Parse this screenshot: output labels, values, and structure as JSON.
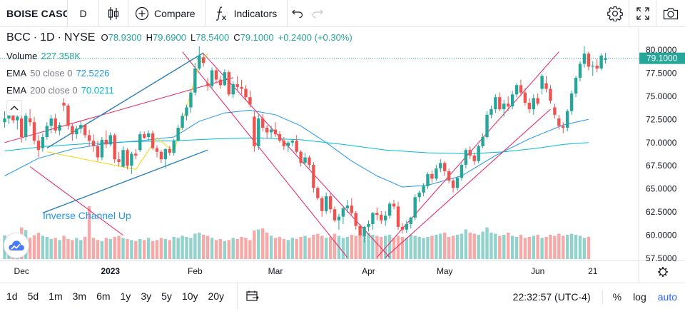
{
  "toolbar": {
    "symbol": "BOISE CASC",
    "interval": "D",
    "compare_label": "Compare",
    "indicators_label": "Indicators"
  },
  "legend": {
    "symbol": "BCC",
    "interval": "1D",
    "exchange": "NYSE",
    "open_label": "O",
    "open": "78.9300",
    "high_label": "H",
    "high": "79.6900",
    "low_label": "L",
    "low": "78.5400",
    "close_label": "C",
    "close": "79.1000",
    "change": "+0.2400 (+0.30%)",
    "volume_label": "Volume",
    "volume_value": "227.358K",
    "ema50_label": "EMA",
    "ema50_param": "50 close 0",
    "ema50_value": "72.5226",
    "ema200_label": "EMA",
    "ema200_param": "200 close 0",
    "ema200_value": "70.0211"
  },
  "colors": {
    "up": "#26a69a",
    "down": "#ef5350",
    "ema50": "#2196f3",
    "ema200": "#00bcd4",
    "channel": "#e91e63",
    "trend_blue": "#1f7ab8",
    "pattern_yellow": "#f5d60c",
    "annotation": "#2196f3",
    "accent": "#2962ff"
  },
  "bottom": {
    "ranges": [
      "1d",
      "5d",
      "1m",
      "3m",
      "6m",
      "1y",
      "3y",
      "5y",
      "10y",
      "20y"
    ],
    "clock": "22:32:57 (UTC-4)",
    "pct": "%",
    "log": "log",
    "auto": "auto"
  },
  "icons": {
    "chart_type": "candles-icon",
    "compare": "plus-circle-icon",
    "indicators": "fx-icon",
    "undo": "undo-icon",
    "redo": "redo-icon",
    "settings": "gear-icon",
    "fullscreen": "fullscreen-icon",
    "snapshot": "camera-icon",
    "date_range": "calendar-range-icon",
    "time_axis_settings": "gear-icon"
  },
  "chart_data": {
    "type": "candlestick",
    "ylim": [
      57.5,
      81.0
    ],
    "y_ticks": [
      "80.0000",
      "77.5000",
      "75.0000",
      "72.5000",
      "70.0000",
      "67.5000",
      "65.0000",
      "62.5000",
      "60.0000",
      "57.5000"
    ],
    "y_tick_values": [
      80,
      77.5,
      75,
      72.5,
      70,
      67.5,
      65,
      62.5,
      60,
      57.5
    ],
    "x_ticks": [
      {
        "label": "Dec",
        "bar": 4,
        "bold": false
      },
      {
        "label": "2023",
        "bar": 25,
        "bold": true
      },
      {
        "label": "Feb",
        "bar": 45,
        "bold": false
      },
      {
        "label": "Mar",
        "bar": 64,
        "bold": false
      },
      {
        "label": "Apr",
        "bar": 86,
        "bold": false
      },
      {
        "label": "May",
        "bar": 104,
        "bold": false
      },
      {
        "label": "Jun",
        "bar": 126,
        "bold": false
      },
      {
        "label": "21",
        "bar": 139,
        "bold": false
      }
    ],
    "last_price": 79.1,
    "last_price_label": "79.1000",
    "annotation": "Inverse Channel Up",
    "candles": [
      [
        72.2,
        73.4,
        71.6,
        72.6
      ],
      [
        72.6,
        73.6,
        72.0,
        73.2
      ],
      [
        73.2,
        73.8,
        72.1,
        72.4
      ],
      [
        72.4,
        73.0,
        71.4,
        72.8
      ],
      [
        72.6,
        72.9,
        70.0,
        70.6
      ],
      [
        70.6,
        73.2,
        70.2,
        72.9
      ],
      [
        72.6,
        73.6,
        71.8,
        72.2
      ],
      [
        72.2,
        72.8,
        69.8,
        70.2
      ],
      [
        70.2,
        70.8,
        68.4,
        69.2
      ],
      [
        69.4,
        71.0,
        69.0,
        70.6
      ],
      [
        70.6,
        72.2,
        70.3,
        71.8
      ],
      [
        71.8,
        73.0,
        71.0,
        72.6
      ],
      [
        72.6,
        73.1,
        71.0,
        71.3
      ],
      [
        71.3,
        72.2,
        70.8,
        71.9
      ],
      [
        74.3,
        74.8,
        73.4,
        74.0
      ],
      [
        74.0,
        74.2,
        71.4,
        71.8
      ],
      [
        71.8,
        72.1,
        70.2,
        70.9
      ],
      [
        70.9,
        71.8,
        70.4,
        71.5
      ],
      [
        71.5,
        72.3,
        71.0,
        71.9
      ],
      [
        71.9,
        72.0,
        70.5,
        70.8
      ],
      [
        70.8,
        71.4,
        69.6,
        70.2
      ],
      [
        70.2,
        70.9,
        69.0,
        69.6
      ],
      [
        69.6,
        70.2,
        68.0,
        68.4
      ],
      [
        68.4,
        70.6,
        68.1,
        70.3
      ],
      [
        70.3,
        71.3,
        69.4,
        69.8
      ],
      [
        69.8,
        71.1,
        69.6,
        70.8
      ],
      [
        70.8,
        71.0,
        67.8,
        68.2
      ],
      [
        68.2,
        69.0,
        67.4,
        67.9
      ],
      [
        67.4,
        69.6,
        67.3,
        69.2
      ],
      [
        69.2,
        69.4,
        67.1,
        67.5
      ],
      [
        67.5,
        69.0,
        66.6,
        68.8
      ],
      [
        68.8,
        69.3,
        68.2,
        68.6
      ],
      [
        69.2,
        71.2,
        69.0,
        70.9
      ],
      [
        70.9,
        71.2,
        70.4,
        70.5
      ],
      [
        70.6,
        71.3,
        70.2,
        71.0
      ],
      [
        71.0,
        71.3,
        69.2,
        69.4
      ],
      [
        69.4,
        69.7,
        68.4,
        69.0
      ],
      [
        69.0,
        69.2,
        67.8,
        68.2
      ],
      [
        68.2,
        69.4,
        67.2,
        69.3
      ],
      [
        69.3,
        69.6,
        68.6,
        68.9
      ],
      [
        68.9,
        70.4,
        68.6,
        70.2
      ],
      [
        70.2,
        71.9,
        70.1,
        71.6
      ],
      [
        71.6,
        73.2,
        71.4,
        72.9
      ],
      [
        72.9,
        74.1,
        72.4,
        73.8
      ],
      [
        73.8,
        75.6,
        73.2,
        75.4
      ],
      [
        75.4,
        78.6,
        75.1,
        78.0
      ],
      [
        78.0,
        80.4,
        77.8,
        79.4
      ],
      [
        79.2,
        79.6,
        78.2,
        78.6
      ],
      [
        76.4,
        77.0,
        75.6,
        76.1
      ],
      [
        76.1,
        78.1,
        75.8,
        77.8
      ],
      [
        77.8,
        78.0,
        76.4,
        76.8
      ],
      [
        76.8,
        77.2,
        75.8,
        76.2
      ],
      [
        76.2,
        77.9,
        76.1,
        77.6
      ],
      [
        77.6,
        77.8,
        75.0,
        75.2
      ],
      [
        75.2,
        76.6,
        74.8,
        76.3
      ],
      [
        76.3,
        77.2,
        75.6,
        76.0
      ],
      [
        76.0,
        76.8,
        75.2,
        75.8
      ],
      [
        75.8,
        76.2,
        74.6,
        74.9
      ],
      [
        74.9,
        75.6,
        73.8,
        74.1
      ],
      [
        72.8,
        73.4,
        69.0,
        69.6
      ],
      [
        69.6,
        73.0,
        69.2,
        72.6
      ],
      [
        72.6,
        73.1,
        71.2,
        71.6
      ],
      [
        71.6,
        71.9,
        70.4,
        71.1
      ],
      [
        71.1,
        71.8,
        70.5,
        71.4
      ],
      [
        71.4,
        72.2,
        70.6,
        70.9
      ],
      [
        70.9,
        71.2,
        70.0,
        70.2
      ],
      [
        70.2,
        70.6,
        69.2,
        69.6
      ],
      [
        69.6,
        70.2,
        69.0,
        70.0
      ],
      [
        70.0,
        70.4,
        69.6,
        70.2
      ],
      [
        70.2,
        70.8,
        68.8,
        69.0
      ],
      [
        69.0,
        69.2,
        67.4,
        67.8
      ],
      [
        67.8,
        68.9,
        67.6,
        68.4
      ],
      [
        68.4,
        68.6,
        67.2,
        67.6
      ],
      [
        67.6,
        67.9,
        64.6,
        65.1
      ],
      [
        65.1,
        65.3,
        63.8,
        64.0
      ],
      [
        64.0,
        64.2,
        62.0,
        62.6
      ],
      [
        62.6,
        64.6,
        62.3,
        64.2
      ],
      [
        64.2,
        64.6,
        62.4,
        62.8
      ],
      [
        62.8,
        63.1,
        61.4,
        61.6
      ],
      [
        61.6,
        62.3,
        60.6,
        62.0
      ],
      [
        62.0,
        63.2,
        61.2,
        62.9
      ],
      [
        62.9,
        63.8,
        62.4,
        63.2
      ],
      [
        63.2,
        64.0,
        62.2,
        62.4
      ],
      [
        62.4,
        62.6,
        60.6,
        61.0
      ],
      [
        61.0,
        61.2,
        59.8,
        60.0
      ],
      [
        59.9,
        61.0,
        59.2,
        60.9
      ],
      [
        60.9,
        61.6,
        60.4,
        61.2
      ],
      [
        61.2,
        62.5,
        60.6,
        62.4
      ],
      [
        62.4,
        63.0,
        61.6,
        62.2
      ],
      [
        62.2,
        62.6,
        61.2,
        61.6
      ],
      [
        61.6,
        62.6,
        61.0,
        62.1
      ],
      [
        62.1,
        63.6,
        61.8,
        63.4
      ],
      [
        63.4,
        63.8,
        62.8,
        63.1
      ],
      [
        63.1,
        63.6,
        60.6,
        60.9
      ],
      [
        60.9,
        61.3,
        60.2,
        60.6
      ],
      [
        60.6,
        61.6,
        60.2,
        61.2
      ],
      [
        61.2,
        62.0,
        60.7,
        61.9
      ],
      [
        61.9,
        64.4,
        61.6,
        64.1
      ],
      [
        64.1,
        64.8,
        63.6,
        64.6
      ],
      [
        64.6,
        65.6,
        64.2,
        65.3
      ],
      [
        65.3,
        66.8,
        65.0,
        66.6
      ],
      [
        66.6,
        67.0,
        65.7,
        66.1
      ],
      [
        66.1,
        67.6,
        65.9,
        67.2
      ],
      [
        67.2,
        68.2,
        66.8,
        67.8
      ],
      [
        67.8,
        68.0,
        66.4,
        66.9
      ],
      [
        66.9,
        67.2,
        65.6,
        65.9
      ],
      [
        65.9,
        66.2,
        64.6,
        65.1
      ],
      [
        65.1,
        66.4,
        64.8,
        66.2
      ],
      [
        66.2,
        67.8,
        65.9,
        67.6
      ],
      [
        67.6,
        69.4,
        67.2,
        69.2
      ],
      [
        69.2,
        69.6,
        68.2,
        68.6
      ],
      [
        68.6,
        68.9,
        67.6,
        68.0
      ],
      [
        68.0,
        69.8,
        67.8,
        69.6
      ],
      [
        69.6,
        71.0,
        69.4,
        70.6
      ],
      [
        70.6,
        73.4,
        70.4,
        73.0
      ],
      [
        73.0,
        74.0,
        72.6,
        73.6
      ],
      [
        73.6,
        75.2,
        73.2,
        74.9
      ],
      [
        74.9,
        75.4,
        73.4,
        73.6
      ],
      [
        73.6,
        74.6,
        72.8,
        74.2
      ],
      [
        74.2,
        75.0,
        73.4,
        73.9
      ],
      [
        73.9,
        75.6,
        73.6,
        75.2
      ],
      [
        75.2,
        76.4,
        74.9,
        76.2
      ],
      [
        76.2,
        76.8,
        75.0,
        75.4
      ],
      [
        75.4,
        75.9,
        74.0,
        74.3
      ],
      [
        74.3,
        74.8,
        73.2,
        73.6
      ],
      [
        73.6,
        75.2,
        73.0,
        74.8
      ],
      [
        74.8,
        75.3,
        74.0,
        74.2
      ],
      [
        75.8,
        77.4,
        75.2,
        77.2
      ],
      [
        76.4,
        77.2,
        75.4,
        75.8
      ],
      [
        75.8,
        76.2,
        74.2,
        74.5
      ],
      [
        73.8,
        74.2,
        72.6,
        73.0
      ],
      [
        72.6,
        73.0,
        71.4,
        71.8
      ],
      [
        71.8,
        72.2,
        71.0,
        71.6
      ],
      [
        71.6,
        73.6,
        71.2,
        73.4
      ],
      [
        73.4,
        75.6,
        73.0,
        75.3
      ],
      [
        75.3,
        77.2,
        74.9,
        77.0
      ],
      [
        77.0,
        78.8,
        76.6,
        78.5
      ],
      [
        78.5,
        80.4,
        78.1,
        79.6
      ],
      [
        79.6,
        79.8,
        77.8,
        78.2
      ],
      [
        78.2,
        78.8,
        77.2,
        78.3
      ],
      [
        78.3,
        79.0,
        77.6,
        78.0
      ],
      [
        78.0,
        79.6,
        77.8,
        79.4
      ],
      [
        78.93,
        79.69,
        78.54,
        79.1
      ]
    ],
    "volumes": [
      0.45,
      0.4,
      0.38,
      0.42,
      0.6,
      0.55,
      0.4,
      0.45,
      0.5,
      0.44,
      0.42,
      0.38,
      0.4,
      0.36,
      0.44,
      0.38,
      0.36,
      0.4,
      0.36,
      0.42,
      1.0,
      0.4,
      0.36,
      0.34,
      0.4,
      0.38,
      0.42,
      0.44,
      0.4,
      0.38,
      0.36,
      0.34,
      0.38,
      0.36,
      0.4,
      0.34,
      0.36,
      0.4,
      0.38,
      0.36,
      0.42,
      0.4,
      0.44,
      0.42,
      0.4,
      0.48,
      0.5,
      0.46,
      0.44,
      0.4,
      0.36,
      0.38,
      0.34,
      0.36,
      0.4,
      0.38,
      0.42,
      0.4,
      0.36,
      0.54,
      0.56,
      0.58,
      0.5,
      0.44,
      0.4,
      0.42,
      0.38,
      0.36,
      0.4,
      0.38,
      0.42,
      0.44,
      0.4,
      0.46,
      0.48,
      0.44,
      0.4,
      0.42,
      0.48,
      0.44,
      0.4,
      0.42,
      0.46,
      0.44,
      0.48,
      0.52,
      0.5,
      0.46,
      0.44,
      0.42,
      0.44,
      0.46,
      0.4,
      0.44,
      0.42,
      0.4,
      0.46,
      0.44,
      0.42,
      0.4,
      0.42,
      0.44,
      0.46,
      0.48,
      0.5,
      0.42,
      0.44,
      0.46,
      0.48,
      0.56,
      0.5,
      0.48,
      0.46,
      0.52,
      0.6,
      0.5,
      0.48,
      0.44,
      0.46,
      0.5,
      0.44,
      0.42,
      0.46,
      0.4,
      0.42,
      0.44,
      0.46,
      0.4,
      0.42,
      0.46,
      0.44,
      0.48,
      0.44,
      0.46,
      0.48,
      0.46,
      0.44,
      0.4,
      0.42
    ],
    "ema50": [
      [
        0,
        66.4
      ],
      [
        8,
        68.3
      ],
      [
        16,
        69.3
      ],
      [
        24,
        69.9
      ],
      [
        32,
        70.2
      ],
      [
        40,
        70.6
      ],
      [
        46,
        72.3
      ],
      [
        52,
        73.2
      ],
      [
        58,
        73.5
      ],
      [
        64,
        73.0
      ],
      [
        70,
        71.8
      ],
      [
        76,
        70.0
      ],
      [
        82,
        68.0
      ],
      [
        88,
        66.4
      ],
      [
        94,
        65.2
      ],
      [
        100,
        65.4
      ],
      [
        108,
        66.4
      ],
      [
        116,
        68.6
      ],
      [
        124,
        70.4
      ],
      [
        132,
        71.9
      ],
      [
        138,
        72.5
      ]
    ],
    "ema200": [
      [
        0,
        69.1
      ],
      [
        10,
        69.6
      ],
      [
        20,
        69.9
      ],
      [
        30,
        70.1
      ],
      [
        40,
        70.2
      ],
      [
        50,
        70.4
      ],
      [
        60,
        70.5
      ],
      [
        70,
        70.3
      ],
      [
        80,
        69.8
      ],
      [
        90,
        69.2
      ],
      [
        100,
        68.9
      ],
      [
        110,
        68.8
      ],
      [
        118,
        69.0
      ],
      [
        126,
        69.4
      ],
      [
        132,
        69.8
      ],
      [
        138,
        70.0
      ]
    ],
    "drawings": {
      "channel_lines": [
        [
          [
            0,
            70.0
          ],
          [
            54,
            77.0
          ]
        ],
        [
          [
            6,
            67.4
          ],
          [
            28,
            60.0
          ]
        ]
      ],
      "channel_upper_right": [
        [
          [
            47,
            79.6
          ],
          [
            91,
            57.6
          ]
        ],
        [
          [
            88,
            57.6
          ],
          [
            131,
            79.8
          ]
        ]
      ],
      "channel_lower": [
        [
          [
            42,
            79.8
          ],
          [
            81,
            57.6
          ]
        ],
        [
          [
            90,
            57.6
          ],
          [
            129,
            73.6
          ]
        ]
      ],
      "blue_lines": [
        [
          [
            10,
            69.4
          ],
          [
            47,
            79.7
          ]
        ],
        [
          [
            9,
            62.4
          ],
          [
            48,
            69.2
          ]
        ]
      ],
      "yellow_lines": [
        [
          [
            10,
            69.0
          ],
          [
            31,
            67.1
          ],
          [
            36,
            70.5
          ],
          [
            40,
            69.0
          ],
          [
            46,
            78.5
          ],
          [
            48,
            79.6
          ]
        ]
      ]
    }
  }
}
